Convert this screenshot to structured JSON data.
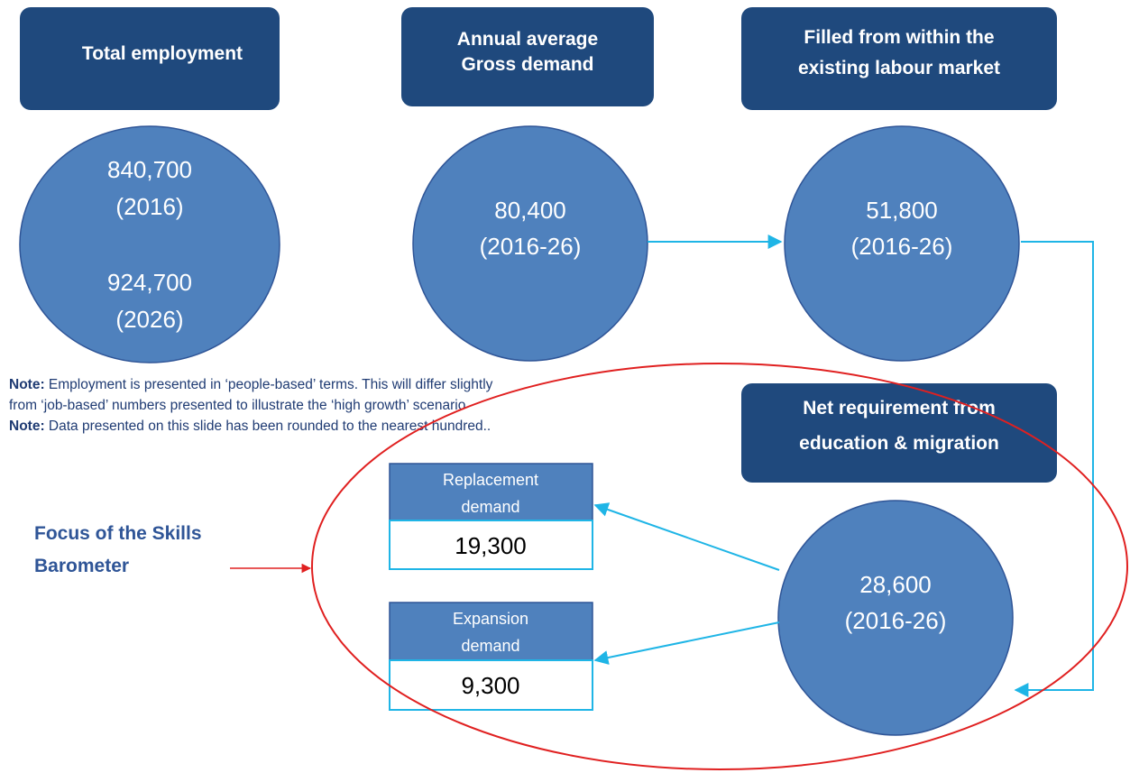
{
  "headers": {
    "total": [
      "Total employment"
    ],
    "gross": [
      "Annual average",
      "Gross demand"
    ],
    "filled": [
      "Filled from within the",
      "existing labour market"
    ],
    "net": [
      "Net requirement from",
      "education & migration"
    ]
  },
  "circles": {
    "total": [
      "840,700",
      "(2016)",
      "924,700",
      "(2026)"
    ],
    "gross": [
      "80,400",
      "(2016-26)"
    ],
    "filled": [
      "51,800",
      "(2016-26)"
    ],
    "net": [
      "28,600",
      "(2016-26)"
    ]
  },
  "notes": [
    {
      "label": "Note:",
      "lines": [
        " Employment is presented in ‘people-based’ terms. This will differ slightly",
        "from ‘job-based’ numbers presented to illustrate the ‘high growth’ scenario"
      ]
    },
    {
      "label": "Note:",
      "lines": [
        " Data presented on this slide has been rounded to the nearest hundred.."
      ]
    }
  ],
  "boxes": [
    {
      "title": [
        "Replacement",
        "demand"
      ],
      "value": "19,300"
    },
    {
      "title": [
        "Expansion",
        "demand"
      ],
      "value": "9,300"
    }
  ],
  "focus": [
    "Focus of the Skills",
    "Barometer"
  ]
}
